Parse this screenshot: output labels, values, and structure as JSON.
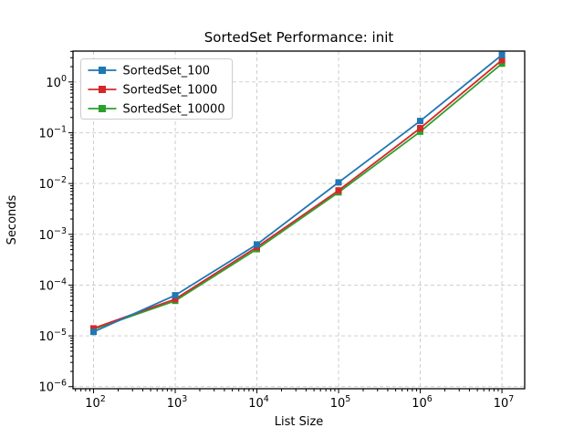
{
  "chart_data": {
    "type": "line",
    "title": "SortedSet Performance: init",
    "xlabel": "List Size",
    "ylabel": "Seconds",
    "x_scale": "log",
    "y_scale": "log",
    "x": [
      100,
      1000,
      10000,
      100000,
      1000000,
      10000000
    ],
    "series": [
      {
        "name": "SortedSet_100",
        "color": "#1f77b4",
        "values": [
          1.2e-05,
          6.3e-05,
          0.00063,
          0.0105,
          0.17,
          3.4
        ]
      },
      {
        "name": "SortedSet_1000",
        "color": "#d62728",
        "values": [
          1.4e-05,
          5.3e-05,
          0.00056,
          0.0073,
          0.123,
          2.7
        ]
      },
      {
        "name": "SortedSet_10000",
        "color": "#2ca02c",
        "values": [
          1.35e-05,
          4.9e-05,
          0.00051,
          0.0067,
          0.105,
          2.3
        ]
      }
    ],
    "x_tick_exponents": [
      2,
      3,
      4,
      5,
      6,
      7
    ],
    "y_tick_exponents": [
      0,
      -1,
      -2,
      -3,
      -4,
      -5,
      -6
    ],
    "xlim": [
      56,
      19000000
    ],
    "ylim": [
      9.1e-07,
      4.05
    ],
    "grid": true,
    "grid_style": "dashed",
    "legend_position": "upper left",
    "marker": "square",
    "colors": {
      "grid": "#c9c9c9",
      "spine": "#000000",
      "background": "#ffffff",
      "legend_border": "#cccccc"
    }
  }
}
